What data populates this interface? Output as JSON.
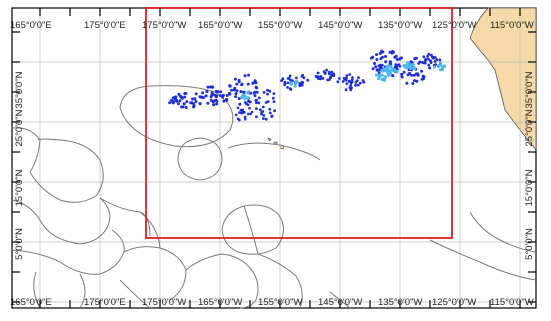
{
  "map": {
    "lon_labels": [
      "165°0'0\"E",
      "175°0'0\"E",
      "175°0'0\"W",
      "165°0'0\"W",
      "155°0'0\"W",
      "145°0'0\"W",
      "135°0'0\"W",
      "125°0'0\"W",
      "115°0'0\"W"
    ],
    "lat_labels": [
      "35°0'0\"N",
      "25°0'0\"N",
      "15°0'0\"N",
      "5°0'0\"N"
    ],
    "colors": {
      "land": "#f5d9a8",
      "study_area": "#e02020",
      "points_dark": "#1f2fd6",
      "points_light": "#4fb8f0"
    }
  }
}
